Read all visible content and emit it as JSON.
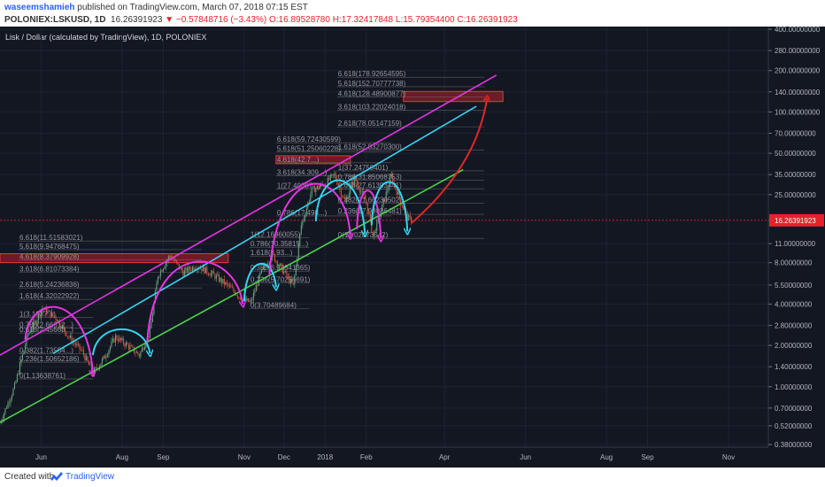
{
  "header": {
    "author": "waseemshamieh",
    "published_text": "published on TradingView.com, March 07, 2018 07:15 EST",
    "symbol": "POLONIEX:LSKUSD, 1D",
    "last": "16.26391923",
    "change": "▼ −0.57848716 (−3.43%)",
    "ohlc": "O:16.89528780 H:17.32417848 L:15.79354400 C:16.26391923"
  },
  "footer": {
    "created_with": "Created with",
    "brand": "TradingView"
  },
  "colors": {
    "background": "#131722",
    "grid": "#1f2330",
    "candle_up": "#6ba583",
    "candle_down": "#d75442",
    "channel_upper": "#e535e5",
    "channel_mid": "#35d4f0",
    "channel_lower": "#4cd24c",
    "projection": "#e52626",
    "zone_fill": "#8b1e2a",
    "zone_border": "#e03a3a",
    "price_label_bg": "#e5212b",
    "fib_line": "#707070"
  },
  "chart_data": {
    "type": "candlestick",
    "title": "Lisk / Dollar (calculated by TradingView), 1D, POLONIEX",
    "y_scale": "log",
    "ylim": [
      0.38,
      400
    ],
    "y_ticks": [
      "400.00000000",
      "280.00000000",
      "200.00000000",
      "140.00000000",
      "100.00000000",
      "70.00000000",
      "50.00000000",
      "35.00000000",
      "25.00000000",
      "16.26391923",
      "11.00000000",
      "8.00000000",
      "5.50000000",
      "4.00000000",
      "2.80000000",
      "2.00000000",
      "1.40000000",
      "1.00000000",
      "0.70000000",
      "0.52000000",
      "0.38000000"
    ],
    "y_tick_values": [
      400,
      280,
      200,
      140,
      100,
      70,
      50,
      35,
      25,
      16.26391923,
      11,
      8,
      5.5,
      4,
      2.8,
      2,
      1.4,
      1,
      0.7,
      0.52,
      0.38
    ],
    "last_price": 16.26391923,
    "x_labels": [
      "Jun",
      "Aug",
      "Sep",
      "Nov",
      "Dec",
      "2018",
      "Feb",
      "Apr",
      "Jun",
      "Aug",
      "Sep",
      "Nov"
    ],
    "x_label_dates": [
      "2017-06-01",
      "2017-08-01",
      "2017-09-01",
      "2017-11-01",
      "2017-12-01",
      "2018-01-01",
      "2018-02-01",
      "2018-04-01",
      "2018-06-01",
      "2018-08-01",
      "2018-09-01",
      "2018-11-01"
    ],
    "x_range": [
      "2017-05-01",
      "2018-12-01"
    ],
    "price_path": [
      [
        "2017-05-01",
        0.55
      ],
      [
        "2017-05-12",
        1.0
      ],
      [
        "2017-05-22",
        2.4
      ],
      [
        "2017-06-02",
        3.7
      ],
      [
        "2017-06-12",
        3.2
      ],
      [
        "2017-06-22",
        2.3
      ],
      [
        "2017-07-02",
        1.8
      ],
      [
        "2017-07-10",
        1.25
      ],
      [
        "2017-07-18",
        1.6
      ],
      [
        "2017-07-27",
        2.3
      ],
      [
        "2017-08-05",
        2.0
      ],
      [
        "2017-08-14",
        1.7
      ],
      [
        "2017-08-22",
        2.5
      ],
      [
        "2017-08-28",
        6.5
      ],
      [
        "2017-09-06",
        9.0
      ],
      [
        "2017-09-16",
        6.8
      ],
      [
        "2017-09-26",
        7.6
      ],
      [
        "2017-10-08",
        6.6
      ],
      [
        "2017-10-20",
        5.4
      ],
      [
        "2017-10-31",
        4.3
      ],
      [
        "2017-11-06",
        4.1
      ],
      [
        "2017-11-13",
        6.5
      ],
      [
        "2017-11-22",
        9.2
      ],
      [
        "2017-12-01",
        6.8
      ],
      [
        "2017-12-08",
        5.4
      ],
      [
        "2017-12-14",
        15.0
      ],
      [
        "2017-12-22",
        27.0
      ],
      [
        "2018-01-01",
        30.0
      ],
      [
        "2018-01-08",
        35.0
      ],
      [
        "2018-01-16",
        22.0
      ],
      [
        "2018-01-23",
        33.0
      ],
      [
        "2018-02-01",
        22.0
      ],
      [
        "2018-02-06",
        12.5
      ],
      [
        "2018-02-12",
        19.0
      ],
      [
        "2018-02-20",
        34.0
      ],
      [
        "2018-02-27",
        22.0
      ],
      [
        "2018-03-04",
        17.0
      ],
      [
        "2018-03-07",
        16.26
      ]
    ],
    "fib_levels": [
      {
        "id": "fib1",
        "x_start": "2017-05-15",
        "x_end": "2017-07-10",
        "labels": [
          {
            "label": "1.618(4.32022922)",
            "value": 4.32
          },
          {
            "label": "1(3.1937...)",
            "value": 3.19
          },
          {
            "label": "0.786(2.66812...)",
            "value": 2.67
          },
          {
            "label": "0.618(2.45663...)",
            "value": 2.46
          },
          {
            "label": "0.382(1.73554...)",
            "value": 1.74
          },
          {
            "label": "0.236(1.50652186)",
            "value": 1.51
          },
          {
            "label": "0(1.13638761)",
            "value": 1.14
          }
        ]
      },
      {
        "id": "fib2",
        "x_start": "2017-05-15",
        "x_end": "2017-09-30",
        "labels": [
          {
            "label": "6.618(11.51583021)",
            "value": 11.5
          },
          {
            "label": "5.618(9.94768475)",
            "value": 9.95
          },
          {
            "label": "4.618(8.37909928)",
            "value": 8.38
          },
          {
            "label": "3.618(6.81073384)",
            "value": 6.81
          },
          {
            "label": "2.618(5.24236836)",
            "value": 5.24
          }
        ]
      },
      {
        "id": "fib3",
        "x_start": "2017-11-05",
        "x_end": "2017-12-20",
        "labels": [
          {
            "label": "1.618(8.93...)",
            "value": 8.93
          },
          {
            "label": "0.786(10.35815...)",
            "value": 10.36
          },
          {
            "label": "0.382(6.93841365)",
            "value": 6.94
          },
          {
            "label": "0.236(5.70256691)",
            "value": 5.7
          },
          {
            "label": "0(3.70489684)",
            "value": 3.7
          },
          {
            "label": "1(12.16960055)",
            "value": 12.17
          }
        ]
      },
      {
        "id": "fib4",
        "x_start": "2017-11-25",
        "x_end": "2018-02-20",
        "labels": [
          {
            "label": "6.618(59.72430599)",
            "value": 59.72
          },
          {
            "label": "5.618(51.25060228)",
            "value": 51.25
          },
          {
            "label": "4.618(42.7...)",
            "value": 42.7
          },
          {
            "label": "3.618(34.309...)",
            "value": 34.31
          },
          {
            "label": "1(27.49087...)",
            "value": 27.49
          },
          {
            "label": "0.786(17.498...)",
            "value": 17.5
          }
        ]
      },
      {
        "id": "fib5",
        "x_start": "2018-01-10",
        "x_end": "2018-05-01",
        "labels": [
          {
            "label": "6.618(178.92654595)",
            "value": 178.93
          },
          {
            "label": "5.618(152.70777738)",
            "value": 152.71
          },
          {
            "label": "4.618(128.48900877)",
            "value": 128.49
          },
          {
            "label": "3.618(103.22024018)",
            "value": 103.22
          },
          {
            "label": "2.618(78.05147159)",
            "value": 78.05
          },
          {
            "label": "1.618(52.83270300)",
            "value": 52.83
          },
          {
            "label": "1(37.24750401)",
            "value": 37.25
          },
          {
            "label": "0.786(31.85068753)",
            "value": 31.85
          },
          {
            "label": "0.618(27.61393441)",
            "value": 27.61
          },
          {
            "label": "0.382(21.66230502)",
            "value": 21.66
          },
          {
            "label": "0.236(17.98036481)",
            "value": 17.98
          },
          {
            "label": "0(12.02873542)",
            "value": 12.03
          }
        ]
      }
    ],
    "zones": [
      {
        "id": "zone-1",
        "x_start": "2017-05-01",
        "x_end": "2017-10-20",
        "y_low": 8.0,
        "y_high": 9.3
      },
      {
        "id": "zone-2",
        "x_start": "2017-11-25",
        "x_end": "2018-01-20",
        "y_low": 42.0,
        "y_high": 48.0
      },
      {
        "id": "zone-3",
        "x_start": "2018-03-01",
        "x_end": "2018-05-15",
        "y_low": 119.0,
        "y_high": 141.0
      }
    ],
    "trend_lines": [
      {
        "id": "upper",
        "points": [
          [
            "2017-05-01",
            1.7
          ],
          [
            "2018-05-10",
            185
          ]
        ]
      },
      {
        "id": "middle",
        "points": [
          [
            "2017-06-10",
            1.75
          ],
          [
            "2018-04-25",
            110
          ]
        ]
      },
      {
        "id": "lower",
        "points": [
          [
            "2017-05-01",
            0.55
          ],
          [
            "2018-04-15",
            38
          ]
        ]
      }
    ],
    "arcs": [
      {
        "color": "magenta",
        "start": [
          "2017-05-20",
          2.2
        ],
        "end": [
          "2017-07-10",
          1.25
        ],
        "peak": [
          "2017-06-08",
          4.3
        ]
      },
      {
        "color": "cyan",
        "start": [
          "2017-07-10",
          1.7
        ],
        "end": [
          "2017-08-22",
          1.75
        ],
        "peak": [
          "2017-07-30",
          2.8
        ]
      },
      {
        "color": "magenta",
        "start": [
          "2017-08-20",
          2.1
        ],
        "end": [
          "2017-10-31",
          4.0
        ],
        "peak": [
          "2017-09-15",
          9.5
        ]
      },
      {
        "color": "cyan",
        "start": [
          "2017-11-01",
          4.2
        ],
        "end": [
          "2017-11-25",
          5.3
        ],
        "peak": [
          "2017-11-12",
          8.5
        ]
      },
      {
        "color": "magenta",
        "start": [
          "2017-11-20",
          6.5
        ],
        "end": [
          "2018-01-20",
          12.5
        ],
        "peak": [
          "2017-12-28",
          36
        ]
      },
      {
        "color": "cyan",
        "start": [
          "2017-12-25",
          16
        ],
        "end": [
          "2018-01-31",
          13
        ],
        "peak": [
          "2018-01-08",
          36
        ]
      },
      {
        "color": "magenta",
        "start": [
          "2018-01-25",
          14
        ],
        "end": [
          "2018-02-12",
          12
        ],
        "peak": [
          "2018-01-30",
          30
        ]
      },
      {
        "color": "cyan",
        "start": [
          "2018-02-05",
          15
        ],
        "end": [
          "2018-03-04",
          13.5
        ],
        "peak": [
          "2018-02-18",
          35
        ]
      }
    ],
    "projection": {
      "start": [
        "2018-03-07",
        15.5
      ],
      "end": [
        "2018-05-03",
        125
      ],
      "control": [
        "2018-04-25",
        40
      ]
    }
  }
}
